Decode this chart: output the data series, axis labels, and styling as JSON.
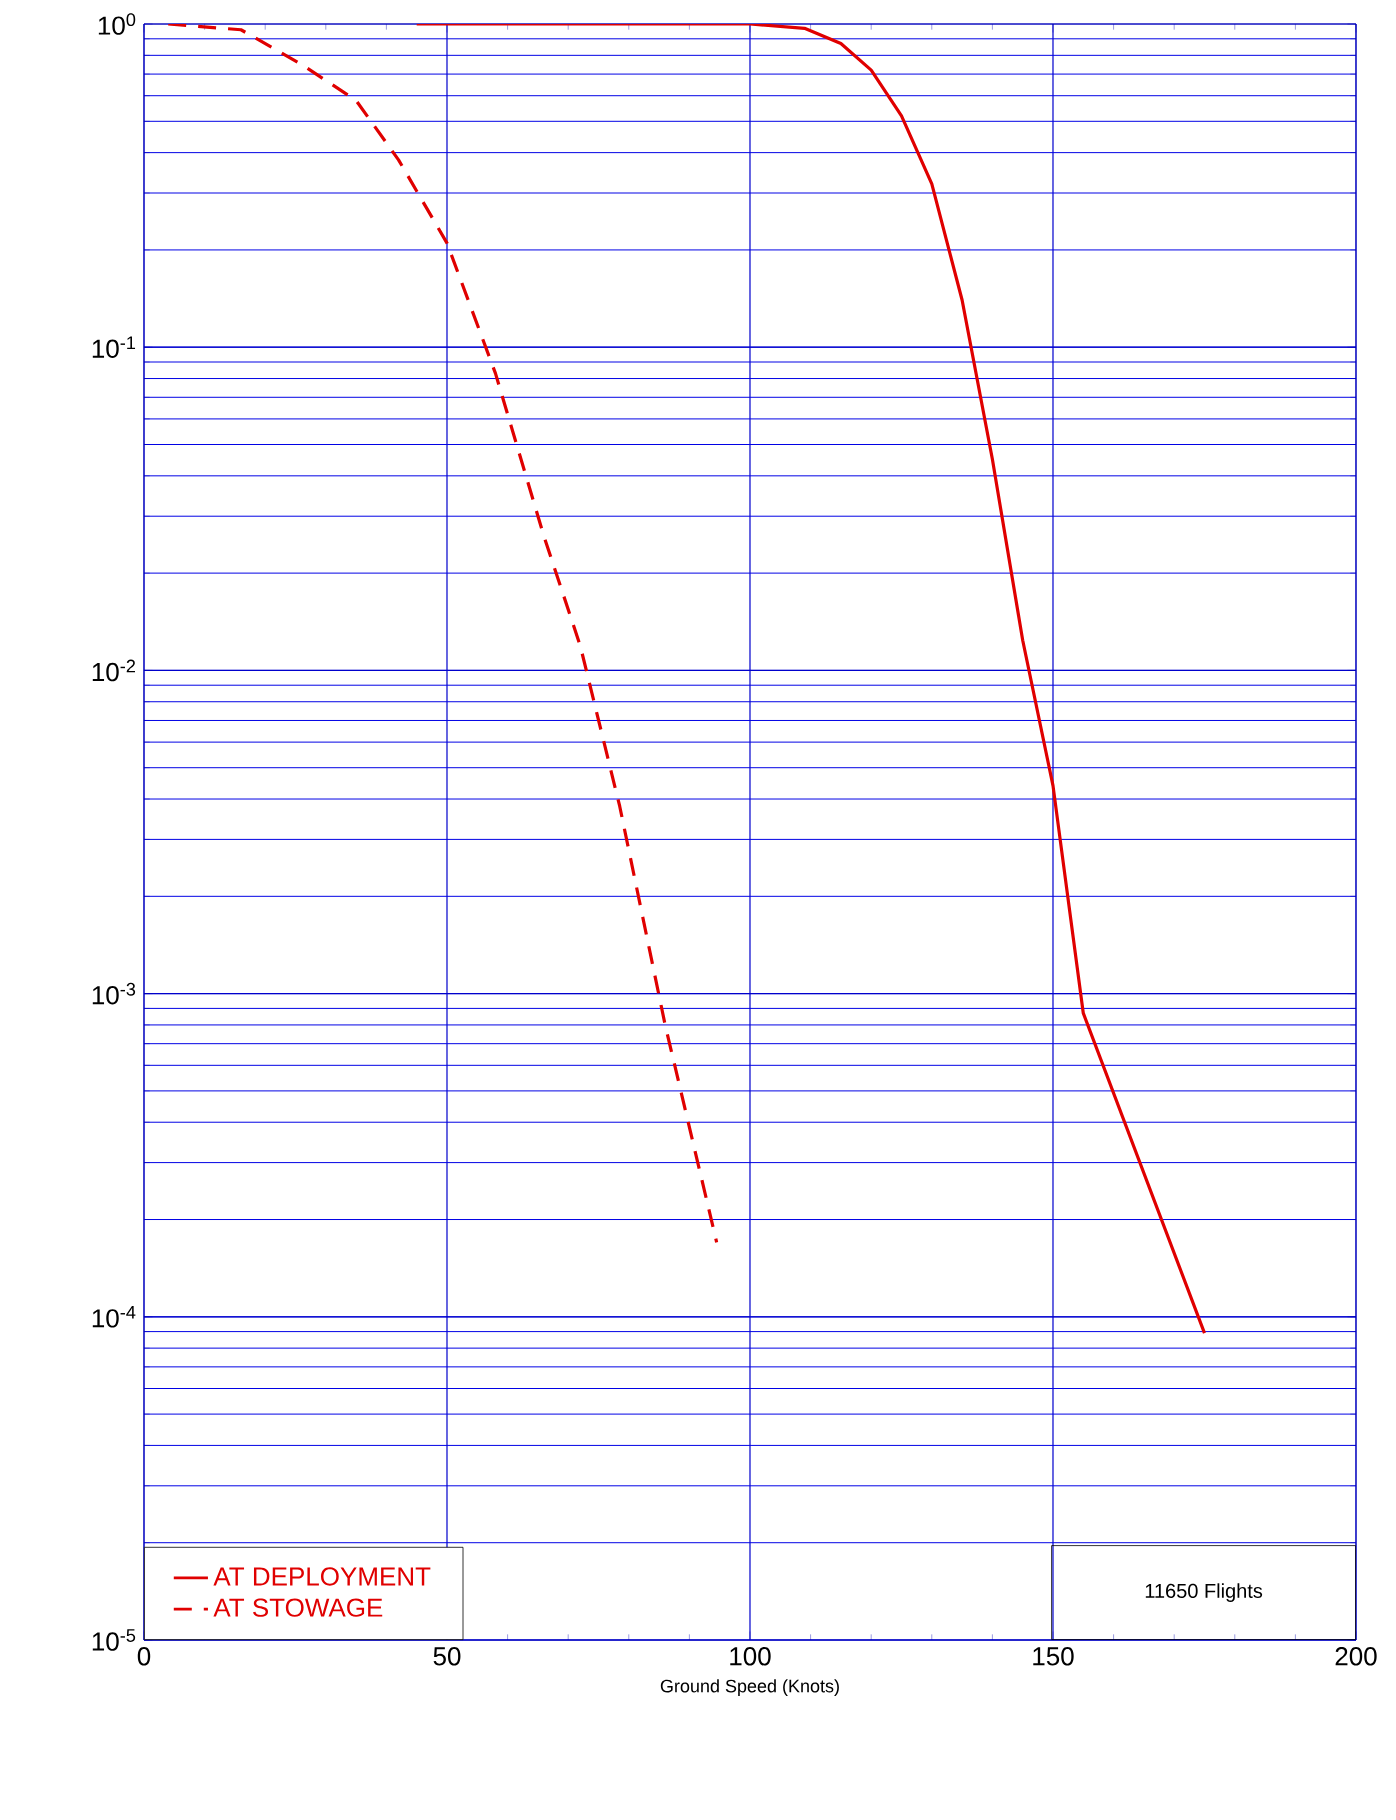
{
  "chart_data": {
    "type": "line",
    "xlabel": "Ground Speed   (Knots)",
    "xlim": [
      0,
      200
    ],
    "xticks": [
      0,
      50,
      100,
      150,
      200
    ],
    "ylim": [
      1e-05,
      1
    ],
    "yticks": [
      {
        "value": 1e-05,
        "label": "10$^{-5}$"
      },
      {
        "value": 0.0001,
        "label": "10$^{-4}$"
      },
      {
        "value": 0.001,
        "label": "10$^{-3}$"
      },
      {
        "value": 0.01,
        "label": "10$^{-2}$"
      },
      {
        "value": 0.1,
        "label": "10$^{-1}$"
      },
      {
        "value": 1,
        "label": "10$^{0}$"
      }
    ],
    "log": true,
    "grid": true,
    "legend": "bottom left",
    "annotations": [
      "11650 Flights"
    ],
    "series": [
      {
        "name": "AT DEPLOYMENT",
        "color": "#e00000",
        "line_style": "solid",
        "x": [
          45,
          100,
          109,
          115,
          120,
          125,
          130,
          135,
          140,
          145,
          150,
          155,
          175
        ],
        "values": [
          1,
          1,
          0.97,
          0.87,
          0.72,
          0.52,
          0.32,
          0.14,
          0.045,
          0.0124,
          0.0044,
          0.00087,
          8.9e-05
        ]
      },
      {
        "name": "AT STOWAGE",
        "color": "#e00000",
        "line_style": "dashed",
        "x": [
          4,
          16,
          26,
          35,
          42,
          50,
          58,
          66,
          72,
          78.5,
          86,
          94.5
        ],
        "values": [
          1,
          0.96,
          0.75,
          0.58,
          0.38,
          0.21,
          0.083,
          0.026,
          0.0119,
          0.0038,
          0.0008,
          0.00017
        ]
      }
    ]
  }
}
